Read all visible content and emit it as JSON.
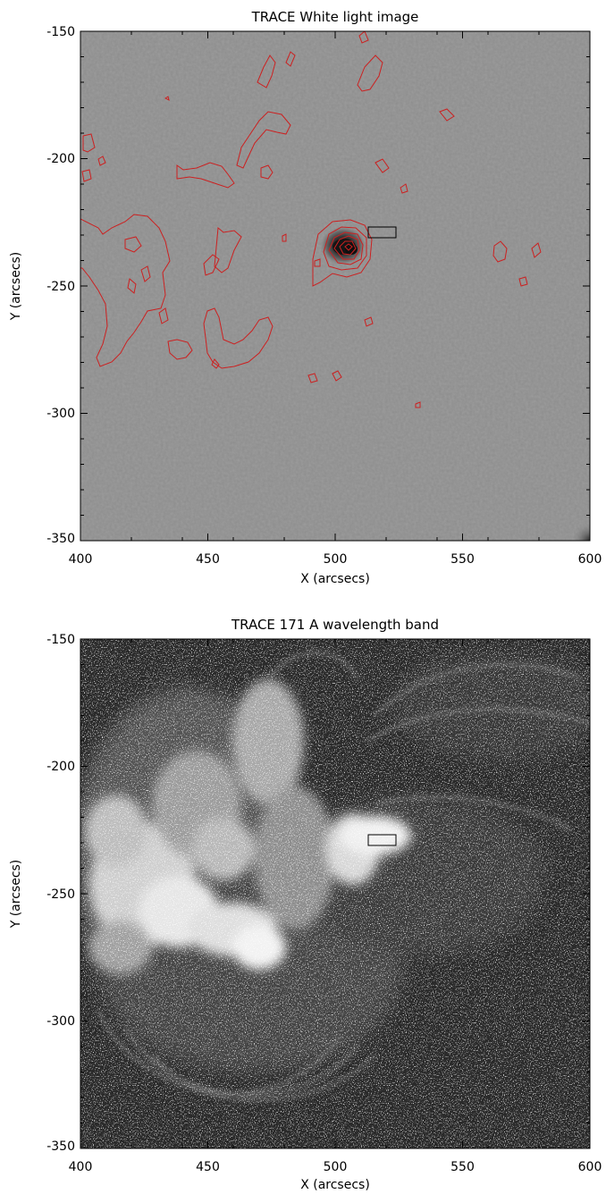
{
  "panels": [
    {
      "id": "white-light",
      "title": "TRACE White light image",
      "xlabel": "X (arcsecs)",
      "ylabel": "Y (arcsecs)",
      "x_range": [
        400,
        600
      ],
      "y_range": [
        -350,
        -150
      ],
      "x_ticks": [
        "400",
        "450",
        "500",
        "550",
        "600"
      ],
      "y_ticks": [
        "-150",
        "-200",
        "-250",
        "-300",
        "-350"
      ],
      "image": "grey granulated photosphere with a sunspot near (505, -237)",
      "box": {
        "x": [
          513,
          524
        ],
        "y": [
          -233,
          -229
        ]
      },
      "contour_color": "#cc2020"
    },
    {
      "id": "euv-171",
      "title": "TRACE 171 A wavelength band",
      "xlabel": "X (arcsecs)",
      "ylabel": "Y (arcsecs)",
      "x_range": [
        400,
        600
      ],
      "y_range": [
        -350,
        -150
      ],
      "x_ticks": [
        "400",
        "450",
        "500",
        "550",
        "600"
      ],
      "y_ticks": [
        "-150",
        "-200",
        "-250",
        "-300",
        "-350"
      ],
      "image": "bright coronal loops of an active region on dark background",
      "box": {
        "x": [
          513,
          524
        ],
        "y": [
          -233,
          -229
        ]
      },
      "contour_color": "#cc2020"
    }
  ]
}
